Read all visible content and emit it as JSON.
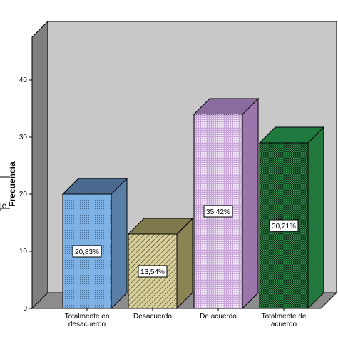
{
  "chart_data": {
    "type": "bar",
    "categories": [
      "Totalmente en desacuerdo",
      "Desacuerdo",
      "De acuerdo",
      "Totalmente de acuerdo"
    ],
    "category_label_lines": [
      [
        "Totalmente en",
        "desacuerdo"
      ],
      [
        "Desacuerdo"
      ],
      [
        "De acuerdo"
      ],
      [
        "Totalmente de",
        "acuerdo"
      ]
    ],
    "values": [
      20,
      13,
      34,
      29
    ],
    "data_labels": [
      "20,83%",
      "13,54%",
      "35,42%",
      "30,21%"
    ],
    "ylabel": "Frecuencia",
    "ylim": [
      0,
      45
    ],
    "yticks": [
      0,
      10,
      20,
      30,
      40
    ],
    "ytick_labels": [
      "0",
      "10",
      "20",
      "30",
      "40"
    ],
    "style": "3d",
    "grid": false,
    "legend": "none",
    "colors": {
      "background_panel": "#c8c8c8",
      "back_wall": "#c8c8c8",
      "floor": "#8c8c8c",
      "side_wall": "#808080",
      "bar_fronts": [
        "#7fb2e5",
        "#d7d09a",
        "#c8a6d9",
        "#2e9a4f"
      ],
      "bar_tops": [
        "#4a6b8f",
        "#7f7a4d",
        "#8c6b9e",
        "#1f7a3f"
      ],
      "bar_sides": [
        "#5a7fa6",
        "#8a8454",
        "#9a76ad",
        "#22773d"
      ]
    }
  },
  "clipped_fragment": "je"
}
